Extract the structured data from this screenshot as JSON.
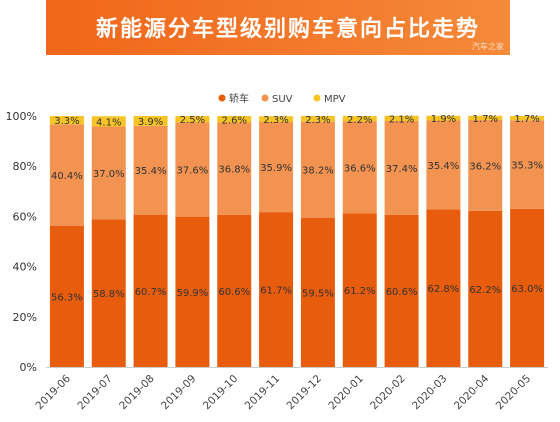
{
  "banner": {
    "title": "新能源分车型级别购车意向占比走势",
    "watermark": "汽车之家",
    "color": "#f0661a"
  },
  "chart_data": {
    "type": "bar",
    "stacked": true,
    "categories": [
      "2019-06",
      "2019-07",
      "2019-08",
      "2019-09",
      "2019-10",
      "2019-11",
      "2019-12",
      "2020-01",
      "2020-02",
      "2020-03",
      "2020-04",
      "2020-05"
    ],
    "series": [
      {
        "name": "轿车",
        "color": "#e85c0d",
        "values": [
          56.3,
          58.8,
          60.7,
          59.9,
          60.6,
          61.7,
          59.5,
          61.2,
          60.6,
          62.8,
          62.2,
          63.0
        ]
      },
      {
        "name": "SUV",
        "color": "#f29351",
        "values": [
          40.4,
          37.0,
          35.4,
          37.6,
          36.8,
          35.9,
          38.2,
          36.6,
          37.4,
          35.4,
          36.2,
          35.3
        ]
      },
      {
        "name": "MPV",
        "color": "#f6c426",
        "values": [
          3.3,
          4.1,
          3.9,
          2.5,
          2.6,
          2.3,
          2.3,
          2.2,
          2.1,
          1.9,
          1.7,
          1.7
        ]
      }
    ],
    "data_labels": {
      "轿车": [
        "56.3%",
        "58.8%",
        "60.7%",
        "59.9%",
        "60.6%",
        "61.7%",
        "59.5%",
        "61.2%",
        "60.6%",
        "62.8%",
        "62.2%",
        "63.0%"
      ],
      "SUV": [
        "40.4%",
        "37.0%",
        "35.4%",
        "37.6%",
        "36.8%",
        "35.9%",
        "38.2%",
        "36.6%",
        "37.4%",
        "35.4%",
        "36.2%",
        "35.3%"
      ],
      "MPV": [
        "3.3%",
        "4.1%",
        "3.9%",
        "2.5%",
        "2.6%",
        "2.3%",
        "2.3%",
        "2.2%",
        "2.1%",
        "1.9%",
        "1.7%",
        "1.7%"
      ]
    },
    "ylim": [
      0,
      100
    ],
    "yticks": [
      "0%",
      "20%",
      "40%",
      "60%",
      "80%",
      "100%"
    ],
    "legend_position": "top-center",
    "grid": false
  }
}
